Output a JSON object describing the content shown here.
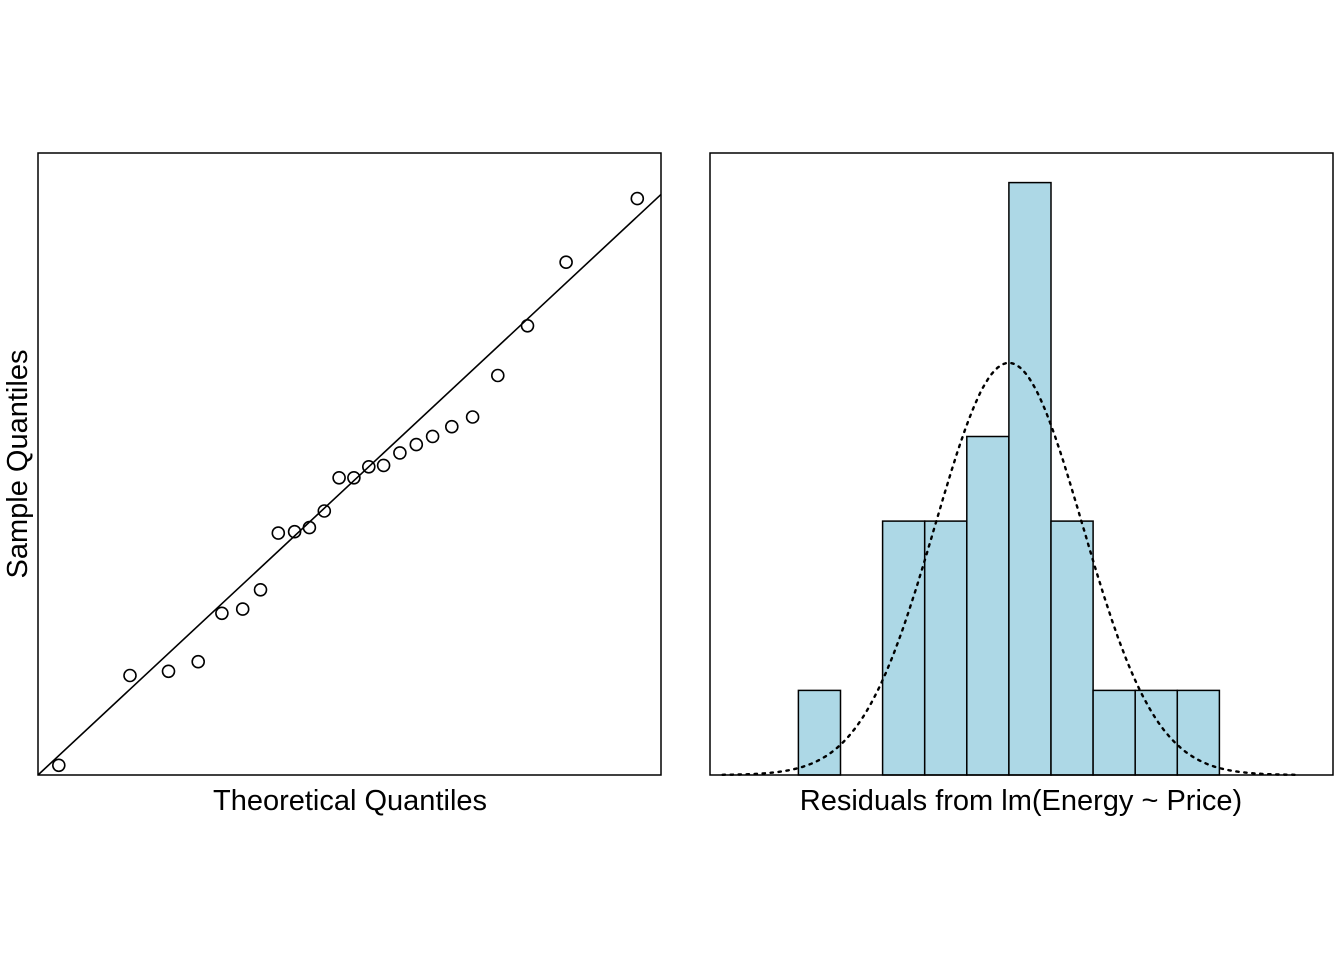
{
  "chart_data": [
    {
      "type": "scatter",
      "subtype": "qq-plot",
      "title": "",
      "xlabel": "Theoretical Quantiles",
      "ylabel": "Sample Quantiles",
      "ticks_shown": false,
      "grid": false,
      "xlim": [
        -2.1,
        2.1
      ],
      "ylim": [
        -2.1,
        2.4
      ],
      "points": [
        {
          "x": -1.96,
          "y": -2.03
        },
        {
          "x": -1.48,
          "y": -1.38
        },
        {
          "x": -1.22,
          "y": -1.35
        },
        {
          "x": -1.02,
          "y": -1.28
        },
        {
          "x": -0.86,
          "y": -0.93
        },
        {
          "x": -0.72,
          "y": -0.9
        },
        {
          "x": -0.6,
          "y": -0.76
        },
        {
          "x": -0.48,
          "y": -0.35
        },
        {
          "x": -0.37,
          "y": -0.34
        },
        {
          "x": -0.27,
          "y": -0.31
        },
        {
          "x": -0.17,
          "y": -0.19
        },
        {
          "x": -0.07,
          "y": 0.05
        },
        {
          "x": 0.03,
          "y": 0.05
        },
        {
          "x": 0.13,
          "y": 0.13
        },
        {
          "x": 0.23,
          "y": 0.14
        },
        {
          "x": 0.34,
          "y": 0.23
        },
        {
          "x": 0.45,
          "y": 0.29
        },
        {
          "x": 0.56,
          "y": 0.35
        },
        {
          "x": 0.69,
          "y": 0.42
        },
        {
          "x": 0.83,
          "y": 0.49
        },
        {
          "x": 1.0,
          "y": 0.79
        },
        {
          "x": 1.2,
          "y": 1.15
        },
        {
          "x": 1.46,
          "y": 1.61
        },
        {
          "x": 1.94,
          "y": 2.07
        }
      ],
      "reference_line": {
        "intercept": 0.0,
        "slope": 1.0
      }
    },
    {
      "type": "bar",
      "subtype": "histogram-with-normal-density",
      "title": "",
      "xlabel": "Residuals from lm(Energy ~ Price)",
      "ylabel": "",
      "ticks_shown": false,
      "grid": false,
      "fill_color": "#ADD8E6",
      "bin_edges": [
        -5,
        -4,
        -3,
        -2,
        -1,
        0,
        1,
        2,
        3,
        4,
        5
      ],
      "counts": [
        1,
        0,
        3,
        3,
        4,
        7,
        3,
        1,
        1,
        1
      ],
      "xlim": [
        -7.1,
        7.7
      ],
      "ylim": [
        0,
        7.35
      ],
      "density_curve": {
        "style": "dotted",
        "mean": 0.0,
        "sd": 1.75,
        "peak_count": 4.87
      }
    }
  ]
}
